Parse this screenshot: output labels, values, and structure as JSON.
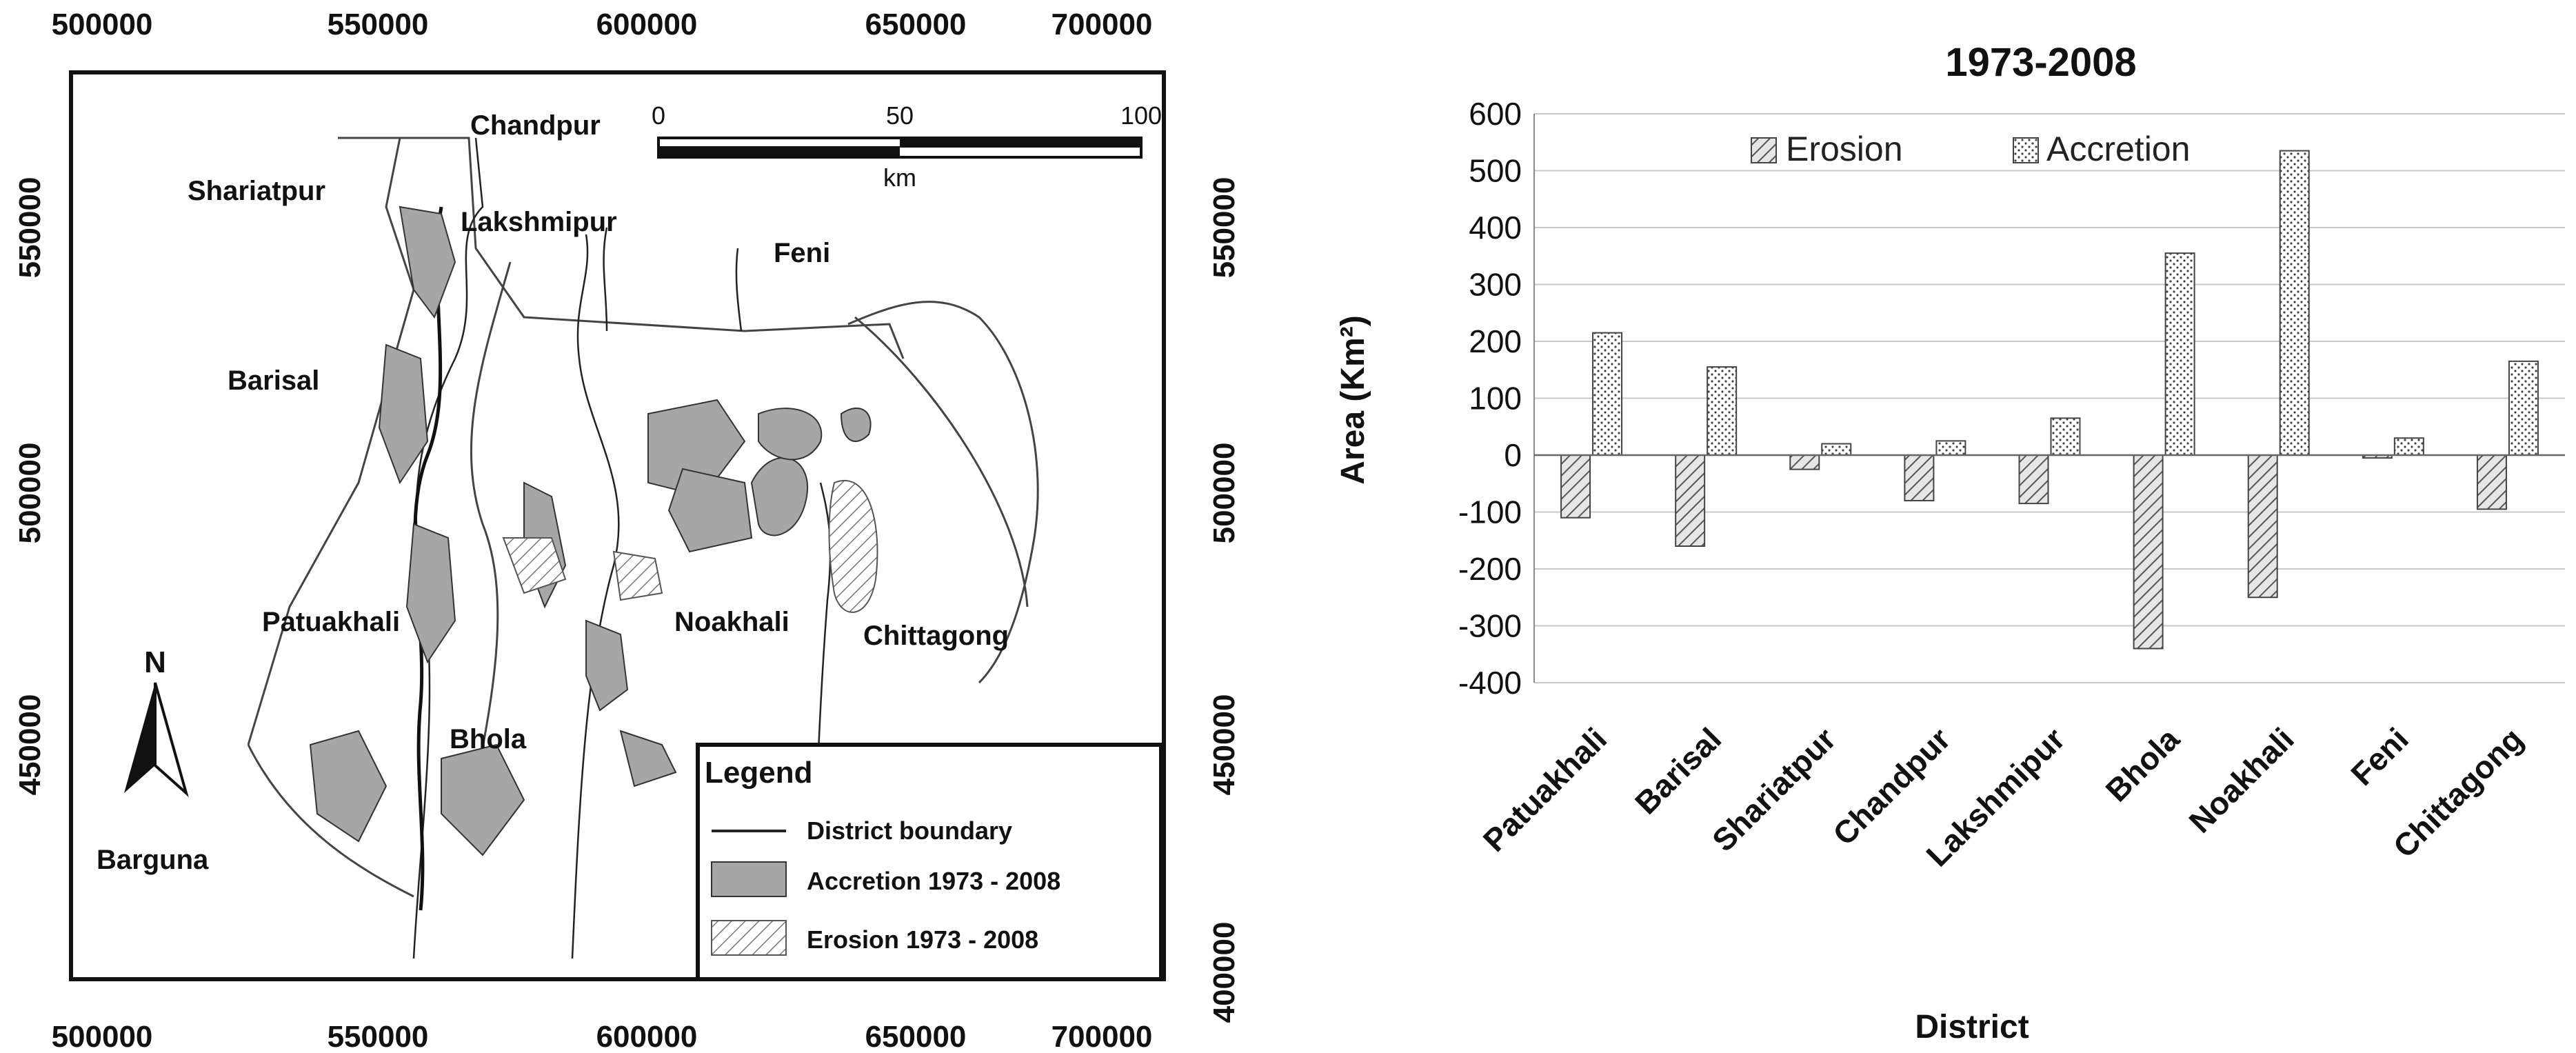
{
  "map": {
    "x_ticks": [
      "500000",
      "550000",
      "600000",
      "650000",
      "700000"
    ],
    "y_ticks": [
      "550000",
      "500000",
      "450000",
      "400000"
    ],
    "north_label": "N",
    "scale": {
      "labels": [
        "0",
        "50",
        "100"
      ],
      "unit": "km"
    },
    "places": [
      "Chandpur",
      "Shariatpur",
      "Lakshmipur",
      "Feni",
      "Barisal",
      "Patuakhali",
      "Noakhali",
      "Chittagong",
      "Bhola",
      "Barguna"
    ],
    "legend": {
      "title": "Legend",
      "items": [
        "District boundary",
        "Accretion 1973 - 2008",
        "Erosion 1973 - 2008"
      ]
    },
    "colors": {
      "accretion": "#a6a6a6",
      "boundary": "#333333"
    }
  },
  "chart_data": {
    "type": "bar",
    "title": "1973-2008",
    "xlabel": "District",
    "ylabel": "Area (Km²)",
    "ylim": [
      -400,
      600
    ],
    "yticks": [
      "600",
      "500",
      "400",
      "300",
      "200",
      "100",
      "0",
      "-100",
      "-200",
      "-300",
      "-400"
    ],
    "grid": true,
    "legend_position": "top",
    "categories": [
      "Patuakhali",
      "Barisal",
      "Shariatpur",
      "Chandpur",
      "Lakshmipur",
      "Bhola",
      "Noakhali",
      "Feni",
      "Chittagong"
    ],
    "series": [
      {
        "name": "Erosion",
        "pattern": "diagonal-hatch",
        "values": [
          -110,
          -160,
          -25,
          -80,
          -85,
          -340,
          -250,
          -5,
          -95
        ]
      },
      {
        "name": "Accretion",
        "pattern": "dotted",
        "values": [
          215,
          155,
          20,
          25,
          65,
          355,
          535,
          30,
          165
        ]
      }
    ]
  }
}
